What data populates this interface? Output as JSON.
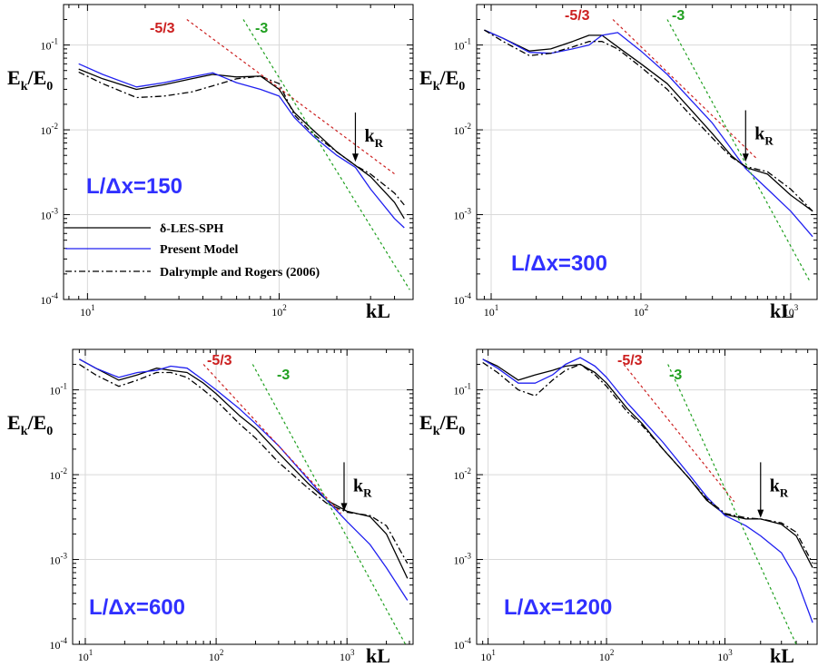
{
  "figure": {
    "y_axis_title": "E",
    "y_axis_title_sub_k": "k",
    "y_axis_title_slash": "/E",
    "y_axis_title_sub_0": "0",
    "x_axis_title": "kL",
    "kr_label": "k",
    "kr_sub": "R",
    "slope_53": "-5/3",
    "slope_3": "-3",
    "colors": {
      "les_sph": "#000000",
      "present": "#2020f0",
      "dalrymple": "#000000",
      "slope_53": "#cc2020",
      "slope_3": "#20a020",
      "res_label": "#3030ff",
      "grid": "#d9d9d9"
    }
  },
  "legend": {
    "items": [
      {
        "label": "δ-LES-SPH",
        "style": "solid",
        "color": "#000000"
      },
      {
        "label": "Present Model",
        "style": "solid",
        "color": "#2020f0"
      },
      {
        "label": "Dalrymple and Rogers (2006)",
        "style": "dashdot",
        "color": "#000000"
      }
    ]
  },
  "chart_data": [
    {
      "type": "line",
      "panel_label": "L/Δx=150",
      "xlabel": "kL",
      "ylabel": "Ek/E0",
      "log_x": true,
      "log_y": true,
      "grid": true,
      "xlim": [
        7.5,
        500
      ],
      "ylim": [
        0.0001,
        0.3
      ],
      "x_tick_labels": [
        "10¹",
        "10²"
      ],
      "y_tick_labels": [
        "10⁻⁴",
        "10⁻³",
        "10⁻²",
        "10⁻¹"
      ],
      "series": [
        {
          "name": "δ-LES-SPH",
          "x": [
            9,
            12,
            18,
            25,
            35,
            45,
            60,
            80,
            100,
            120,
            150,
            200,
            250,
            300,
            400,
            450
          ],
          "y": [
            0.052,
            0.04,
            0.03,
            0.034,
            0.04,
            0.045,
            0.042,
            0.043,
            0.03,
            0.016,
            0.01,
            0.0055,
            0.0038,
            0.0028,
            0.0014,
            0.0009
          ]
        },
        {
          "name": "Present Model",
          "x": [
            9,
            12,
            18,
            25,
            35,
            45,
            60,
            80,
            100,
            120,
            150,
            200,
            250,
            300,
            400,
            450
          ],
          "y": [
            0.06,
            0.045,
            0.032,
            0.036,
            0.042,
            0.047,
            0.036,
            0.03,
            0.025,
            0.014,
            0.0085,
            0.005,
            0.0036,
            0.002,
            0.0009,
            0.0007
          ]
        },
        {
          "name": "Dalrymple and Rogers (2006)",
          "x": [
            9,
            12,
            18,
            25,
            35,
            45,
            60,
            80,
            100,
            120,
            150,
            200,
            250,
            300,
            400,
            450
          ],
          "y": [
            0.048,
            0.035,
            0.024,
            0.025,
            0.028,
            0.033,
            0.04,
            0.043,
            0.035,
            0.015,
            0.009,
            0.0055,
            0.0038,
            0.003,
            0.0018,
            0.0013
          ]
        },
        {
          "name": "-5/3",
          "x": [
            33,
            410
          ],
          "y": [
            0.2,
            0.0029
          ]
        },
        {
          "name": "-3",
          "x": [
            65,
            480
          ],
          "y": [
            0.2,
            0.00013
          ]
        }
      ],
      "annotations": [
        {
          "text": "kR",
          "x": 250,
          "arrow_top_y": 0.016,
          "arrow_tip_y": 0.0042
        }
      ]
    },
    {
      "type": "line",
      "panel_label": "L/Δx=300",
      "xlabel": "kL",
      "ylabel": "Ek/E0",
      "log_x": true,
      "log_y": true,
      "grid": true,
      "xlim": [
        8,
        1500
      ],
      "ylim": [
        0.0001,
        0.3
      ],
      "x_tick_labels": [
        "10¹",
        "10²",
        "10³"
      ],
      "y_tick_labels": [
        "10⁻⁴",
        "10⁻³",
        "10⁻²",
        "10⁻¹"
      ],
      "series": [
        {
          "name": "δ-LES-SPH",
          "x": [
            9,
            12,
            18,
            25,
            35,
            45,
            55,
            70,
            100,
            150,
            200,
            300,
            400,
            500,
            700,
            1000,
            1400
          ],
          "y": [
            0.15,
            0.12,
            0.085,
            0.09,
            0.11,
            0.13,
            0.13,
            0.095,
            0.06,
            0.035,
            0.02,
            0.009,
            0.005,
            0.0036,
            0.003,
            0.0017,
            0.0011
          ]
        },
        {
          "name": "Present Model",
          "x": [
            9,
            12,
            18,
            25,
            35,
            45,
            55,
            70,
            100,
            150,
            200,
            300,
            400,
            500,
            700,
            1000,
            1400
          ],
          "y": [
            0.15,
            0.12,
            0.082,
            0.08,
            0.09,
            0.1,
            0.13,
            0.14,
            0.085,
            0.045,
            0.026,
            0.012,
            0.006,
            0.0035,
            0.002,
            0.0011,
            0.00055
          ]
        },
        {
          "name": "Dalrymple and Rogers (2006)",
          "x": [
            9,
            12,
            18,
            25,
            35,
            45,
            55,
            70,
            100,
            150,
            200,
            300,
            400,
            500,
            700,
            1000,
            1400
          ],
          "y": [
            0.15,
            0.11,
            0.075,
            0.08,
            0.095,
            0.11,
            0.11,
            0.09,
            0.055,
            0.03,
            0.017,
            0.008,
            0.0048,
            0.0037,
            0.0032,
            0.002,
            0.0011
          ]
        },
        {
          "name": "-5/3",
          "x": [
            65,
            600
          ],
          "y": [
            0.2,
            0.0045
          ]
        },
        {
          "name": "-3",
          "x": [
            150,
            1350
          ],
          "y": [
            0.2,
            0.00016
          ]
        }
      ],
      "annotations": [
        {
          "text": "kR",
          "x": 500,
          "arrow_top_y": 0.017,
          "arrow_tip_y": 0.0042
        }
      ]
    },
    {
      "type": "line",
      "panel_label": "L/Δx=600",
      "xlabel": "kL",
      "ylabel": "Ek/E0",
      "log_x": true,
      "log_y": true,
      "grid": true,
      "xlim": [
        8,
        3200
      ],
      "ylim": [
        0.0001,
        0.3
      ],
      "x_tick_labels": [
        "10¹",
        "10²",
        "10³"
      ],
      "y_tick_labels": [
        "10⁻⁴",
        "10⁻³",
        "10⁻²",
        "10⁻¹"
      ],
      "series": [
        {
          "name": "δ-LES-SPH",
          "x": [
            9,
            12,
            18,
            25,
            35,
            45,
            60,
            80,
            100,
            150,
            200,
            300,
            500,
            700,
            1000,
            1500,
            2000,
            2900
          ],
          "y": [
            0.23,
            0.18,
            0.13,
            0.15,
            0.18,
            0.17,
            0.16,
            0.12,
            0.09,
            0.05,
            0.035,
            0.018,
            0.008,
            0.005,
            0.0037,
            0.0032,
            0.002,
            0.0006
          ]
        },
        {
          "name": "Present Model",
          "x": [
            9,
            12,
            18,
            25,
            35,
            45,
            60,
            80,
            100,
            150,
            200,
            300,
            500,
            700,
            1000,
            1500,
            2000,
            2900
          ],
          "y": [
            0.23,
            0.18,
            0.14,
            0.16,
            0.17,
            0.19,
            0.18,
            0.13,
            0.1,
            0.06,
            0.04,
            0.022,
            0.009,
            0.005,
            0.0028,
            0.0015,
            0.0008,
            0.00033
          ]
        },
        {
          "name": "Dalrymple and Rogers (2006)",
          "x": [
            9,
            12,
            18,
            25,
            35,
            45,
            60,
            80,
            100,
            150,
            200,
            300,
            500,
            700,
            1000,
            1500,
            2000,
            2900
          ],
          "y": [
            0.2,
            0.15,
            0.11,
            0.13,
            0.16,
            0.16,
            0.14,
            0.1,
            0.075,
            0.04,
            0.027,
            0.014,
            0.007,
            0.0046,
            0.0036,
            0.0033,
            0.0025,
            0.0009
          ]
        },
        {
          "name": "-5/3",
          "x": [
            80,
            900
          ],
          "y": [
            0.2,
            0.0035
          ]
        },
        {
          "name": "-3",
          "x": [
            190,
            2800
          ],
          "y": [
            0.2,
            0.0001
          ]
        }
      ],
      "annotations": [
        {
          "text": "kR",
          "x": 950,
          "arrow_top_y": 0.014,
          "arrow_tip_y": 0.0037
        }
      ]
    },
    {
      "type": "line",
      "panel_label": "L/Δx=1200",
      "xlabel": "kL",
      "ylabel": "Ek/E0",
      "log_x": true,
      "log_y": true,
      "grid": true,
      "xlim": [
        8,
        6000
      ],
      "ylim": [
        0.0001,
        0.3
      ],
      "x_tick_labels": [
        "10¹",
        "10²",
        "10³"
      ],
      "y_tick_labels": [
        "10⁻⁴",
        "10⁻³",
        "10⁻²",
        "10⁻¹"
      ],
      "series": [
        {
          "name": "δ-LES-SPH",
          "x": [
            9,
            12,
            18,
            25,
            35,
            45,
            60,
            80,
            100,
            150,
            200,
            300,
            500,
            700,
            1000,
            1500,
            2000,
            3000,
            4000,
            5500
          ],
          "y": [
            0.23,
            0.19,
            0.13,
            0.15,
            0.17,
            0.19,
            0.2,
            0.16,
            0.12,
            0.06,
            0.04,
            0.02,
            0.009,
            0.005,
            0.0034,
            0.003,
            0.003,
            0.0026,
            0.0019,
            0.0008
          ]
        },
        {
          "name": "Present Model",
          "x": [
            9,
            12,
            18,
            25,
            35,
            45,
            60,
            80,
            100,
            150,
            200,
            300,
            500,
            700,
            1000,
            1500,
            2000,
            3000,
            4000,
            5500
          ],
          "y": [
            0.23,
            0.18,
            0.12,
            0.12,
            0.15,
            0.2,
            0.24,
            0.19,
            0.14,
            0.07,
            0.045,
            0.024,
            0.01,
            0.0055,
            0.0033,
            0.0025,
            0.0019,
            0.0012,
            0.0006,
            0.00018
          ]
        },
        {
          "name": "Dalrymple and Rogers (2006)",
          "x": [
            9,
            12,
            18,
            25,
            35,
            45,
            60,
            80,
            100,
            150,
            200,
            300,
            500,
            700,
            1000,
            1500,
            2000,
            3000,
            4000,
            5500
          ],
          "y": [
            0.21,
            0.16,
            0.1,
            0.085,
            0.13,
            0.17,
            0.2,
            0.15,
            0.11,
            0.055,
            0.038,
            0.02,
            0.009,
            0.0052,
            0.0035,
            0.0031,
            0.003,
            0.0027,
            0.0021,
            0.0009
          ]
        },
        {
          "name": "-5/3",
          "x": [
            140,
            1200
          ],
          "y": [
            0.2,
            0.0048
          ]
        },
        {
          "name": "-3",
          "x": [
            330,
            4000
          ],
          "y": [
            0.2,
            0.0001
          ]
        }
      ],
      "annotations": [
        {
          "text": "kR",
          "x": 2000,
          "arrow_top_y": 0.014,
          "arrow_tip_y": 0.0031
        }
      ]
    }
  ]
}
